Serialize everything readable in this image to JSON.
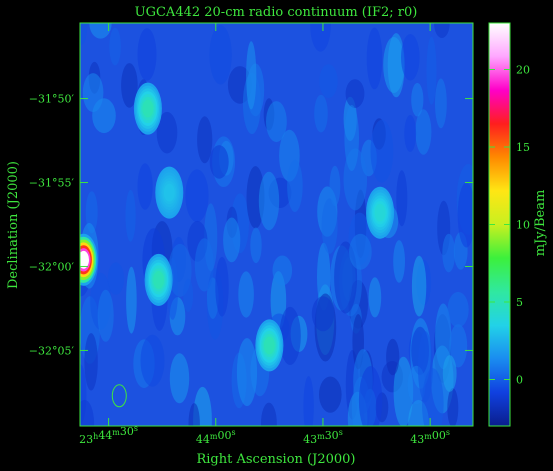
{
  "chart_data": {
    "type": "heatmap",
    "title": "UGCA442  20-cm radio continuum (IF2; r0)",
    "xlabel": "Right Ascension (J2000)",
    "ylabel": "Declination (J2000)",
    "x_ticks": [
      {
        "h": "23",
        "m": "44",
        "s": "30",
        "ra_sec_of_day": 85470
      },
      {
        "h": "",
        "m": "44",
        "s": "00",
        "ra_sec_of_day": 85440
      },
      {
        "h": "",
        "m": "43",
        "s": "30",
        "ra_sec_of_day": 85410
      },
      {
        "h": "",
        "m": "43",
        "s": "00",
        "ra_sec_of_day": 85380
      }
    ],
    "y_ticks": [
      {
        "label": "−31°50′",
        "dec_arcmin": -1910
      },
      {
        "label": "−31°55′",
        "dec_arcmin": -1915
      },
      {
        "label": "−32°00′",
        "dec_arcmin": -1920
      },
      {
        "label": "−32°05′",
        "dec_arcmin": -1925
      }
    ],
    "xlim_ra_sec": [
      85478,
      85368
    ],
    "ylim_dec_arcmin": [
      -1929.5,
      -1905.5
    ],
    "colorbar": {
      "label": "mJy/Beam",
      "range": [
        -3,
        23
      ],
      "ticks": [
        0,
        5,
        10,
        15,
        20
      ],
      "stops": [
        "#0a1e8c",
        "#1040e0",
        "#1a8cf0",
        "#22d2e8",
        "#30e8a0",
        "#3cf03c",
        "#c8f020",
        "#ffe614",
        "#ff8a00",
        "#ff1e1e",
        "#ff00c8",
        "#ffa6ff",
        "#ffffff"
      ]
    },
    "sources": [
      {
        "ra_sec": 85477,
        "dec_arcmin": -1919.6,
        "peak_mJy": 23
      },
      {
        "ra_sec": 85459,
        "dec_arcmin": -1910.6,
        "peak_mJy": 5
      },
      {
        "ra_sec": 85456,
        "dec_arcmin": -1920.8,
        "peak_mJy": 5
      },
      {
        "ra_sec": 85425,
        "dec_arcmin": -1924.7,
        "peak_mJy": 5
      },
      {
        "ra_sec": 85394,
        "dec_arcmin": -1916.8,
        "peak_mJy": 4
      },
      {
        "ra_sec": 85453,
        "dec_arcmin": -1915.6,
        "peak_mJy": 3
      }
    ],
    "beam": {
      "ra_sec": 85467,
      "dec_arcmin": -1927.7
    }
  }
}
